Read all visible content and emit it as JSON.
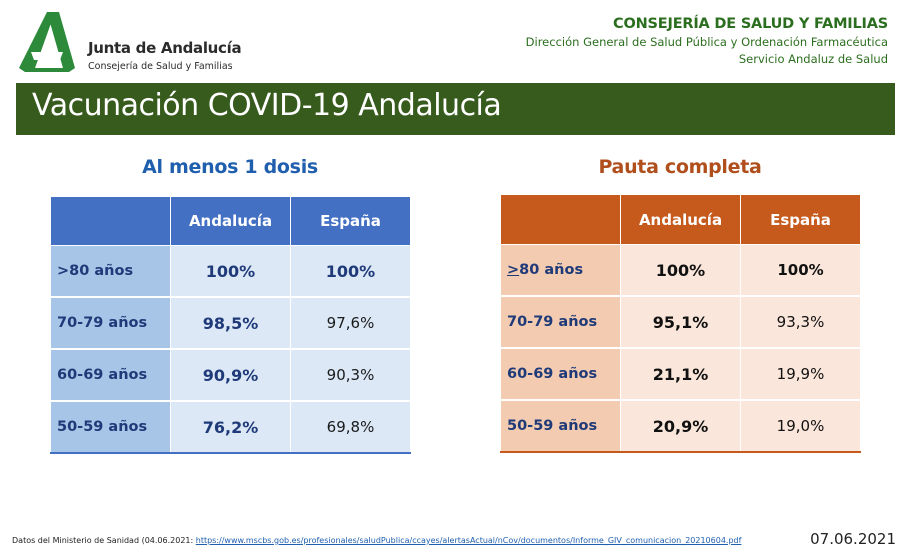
{
  "logo": {
    "icon": "junta-andalucia-logo-icon",
    "title": "Junta de Andalucía",
    "subtitle": "Consejería de Salud y Familias",
    "color": "#2c8a3a"
  },
  "org": {
    "title": "CONSEJERÍA DE SALUD Y FAMILIAS",
    "line1": "Dirección General de Salud Pública y Ordenación Farmacéutica",
    "line2": "Servicio Andaluz de Salud"
  },
  "banner": {
    "title": "Vacunación COVID-19 Andalucía"
  },
  "table1": {
    "heading": "Al menos 1 dosis",
    "col1": "Andalucía",
    "col2": "España",
    "rows": [
      {
        "label": ">80 años",
        "andalucia": "100%",
        "espana": "100%"
      },
      {
        "label": "70-79 años",
        "andalucia": "98,5%",
        "espana": "97,6%"
      },
      {
        "label": "60-69 años",
        "andalucia": "90,9%",
        "espana": "90,3%"
      },
      {
        "label": "50-59 años",
        "andalucia": "76,2%",
        "espana": "69,8%"
      }
    ]
  },
  "table2": {
    "heading": "Pauta completa",
    "col1": "Andalucía",
    "col2": "España",
    "rows": [
      {
        "label_symbol": ">",
        "label_rest": "80 años",
        "andalucia": "100%",
        "espana": "100%"
      },
      {
        "label": "70-79 años",
        "andalucia": "95,1%",
        "espana": "93,3%"
      },
      {
        "label": "60-69 años",
        "andalucia": "21,1%",
        "espana": "19,9%"
      },
      {
        "label": "50-59 años",
        "andalucia": "20,9%",
        "espana": "19,0%"
      }
    ]
  },
  "footer": {
    "source_prefix": "Datos del Ministerio de Sanidad (04.06.2021: ",
    "source_link": "https://www.mscbs.gob.es/profesionales/saludPublica/ccayes/alertasActual/nCov/documentos/Informe_GIV_comunicacion_20210604.pdf",
    "date": "07.06.2021"
  },
  "colors": {
    "banner": "#375b1d",
    "org_text": "#2c6e1f",
    "table1_header": "#4470c4",
    "table2_header": "#c55a1c"
  }
}
